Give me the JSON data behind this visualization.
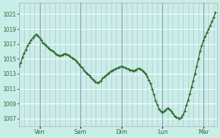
{
  "title": "",
  "bg_color": "#c8eee8",
  "plot_bg_color": "#c8eee8",
  "line_color": "#2d6a2d",
  "marker": "+",
  "marker_size": 3,
  "line_width": 1.0,
  "grid_color_h": "#ffffff",
  "grid_color_v": "#c0b8d8",
  "ylabel_color": "#2d6a2d",
  "ylim": [
    1006,
    1022.5
  ],
  "yticks": [
    1007,
    1009,
    1011,
    1013,
    1015,
    1017,
    1019,
    1021
  ],
  "day_labels": [
    "Ven",
    "Sam",
    "Dim",
    "Lun",
    "Mar"
  ],
  "day_positions": [
    24,
    72,
    120,
    168,
    216
  ],
  "x_values": [
    0,
    2,
    4,
    6,
    8,
    10,
    12,
    14,
    16,
    18,
    20,
    22,
    24,
    26,
    28,
    30,
    32,
    34,
    36,
    38,
    40,
    42,
    44,
    46,
    48,
    50,
    52,
    54,
    56,
    58,
    60,
    62,
    64,
    66,
    68,
    70,
    72,
    74,
    76,
    78,
    80,
    82,
    84,
    86,
    88,
    90,
    92,
    94,
    96,
    98,
    100,
    102,
    104,
    106,
    108,
    110,
    112,
    114,
    116,
    118,
    120,
    122,
    124,
    126,
    128,
    130,
    132,
    134,
    136,
    138,
    140,
    142,
    144,
    146,
    148,
    150,
    152,
    154,
    156,
    158,
    160,
    162,
    164,
    166,
    168,
    170,
    172,
    174,
    176,
    178,
    180,
    182,
    184,
    186,
    188,
    190,
    192,
    194,
    196,
    198,
    200,
    202,
    204,
    206,
    208,
    210,
    212,
    214,
    216,
    218,
    220,
    222,
    224,
    226,
    228,
    230
  ],
  "y_values": [
    1014.0,
    1014.5,
    1015.2,
    1015.8,
    1016.2,
    1016.8,
    1017.2,
    1017.5,
    1017.8,
    1018.1,
    1018.3,
    1018.1,
    1017.8,
    1017.5,
    1017.2,
    1017.0,
    1016.8,
    1016.5,
    1016.3,
    1016.1,
    1016.0,
    1015.8,
    1015.6,
    1015.5,
    1015.4,
    1015.5,
    1015.6,
    1015.7,
    1015.6,
    1015.5,
    1015.3,
    1015.1,
    1015.0,
    1014.8,
    1014.6,
    1014.3,
    1014.0,
    1013.8,
    1013.5,
    1013.2,
    1013.0,
    1012.8,
    1012.5,
    1012.3,
    1012.1,
    1011.9,
    1011.8,
    1011.9,
    1012.1,
    1012.4,
    1012.6,
    1012.8,
    1013.0,
    1013.2,
    1013.4,
    1013.5,
    1013.6,
    1013.7,
    1013.8,
    1013.9,
    1014.0,
    1013.9,
    1013.8,
    1013.7,
    1013.6,
    1013.5,
    1013.5,
    1013.4,
    1013.5,
    1013.6,
    1013.7,
    1013.6,
    1013.5,
    1013.3,
    1013.0,
    1012.6,
    1012.2,
    1011.7,
    1011.0,
    1010.2,
    1009.4,
    1008.8,
    1008.3,
    1008.0,
    1007.8,
    1008.0,
    1008.2,
    1008.4,
    1008.3,
    1008.0,
    1007.7,
    1007.4,
    1007.2,
    1007.1,
    1007.0,
    1007.2,
    1007.5,
    1008.0,
    1008.8,
    1009.5,
    1010.3,
    1011.2,
    1012.1,
    1013.0,
    1014.0,
    1015.0,
    1016.0,
    1016.8,
    1017.5,
    1018.0,
    1018.5,
    1019.0,
    1019.5,
    1020.0,
    1020.6,
    1021.2
  ]
}
